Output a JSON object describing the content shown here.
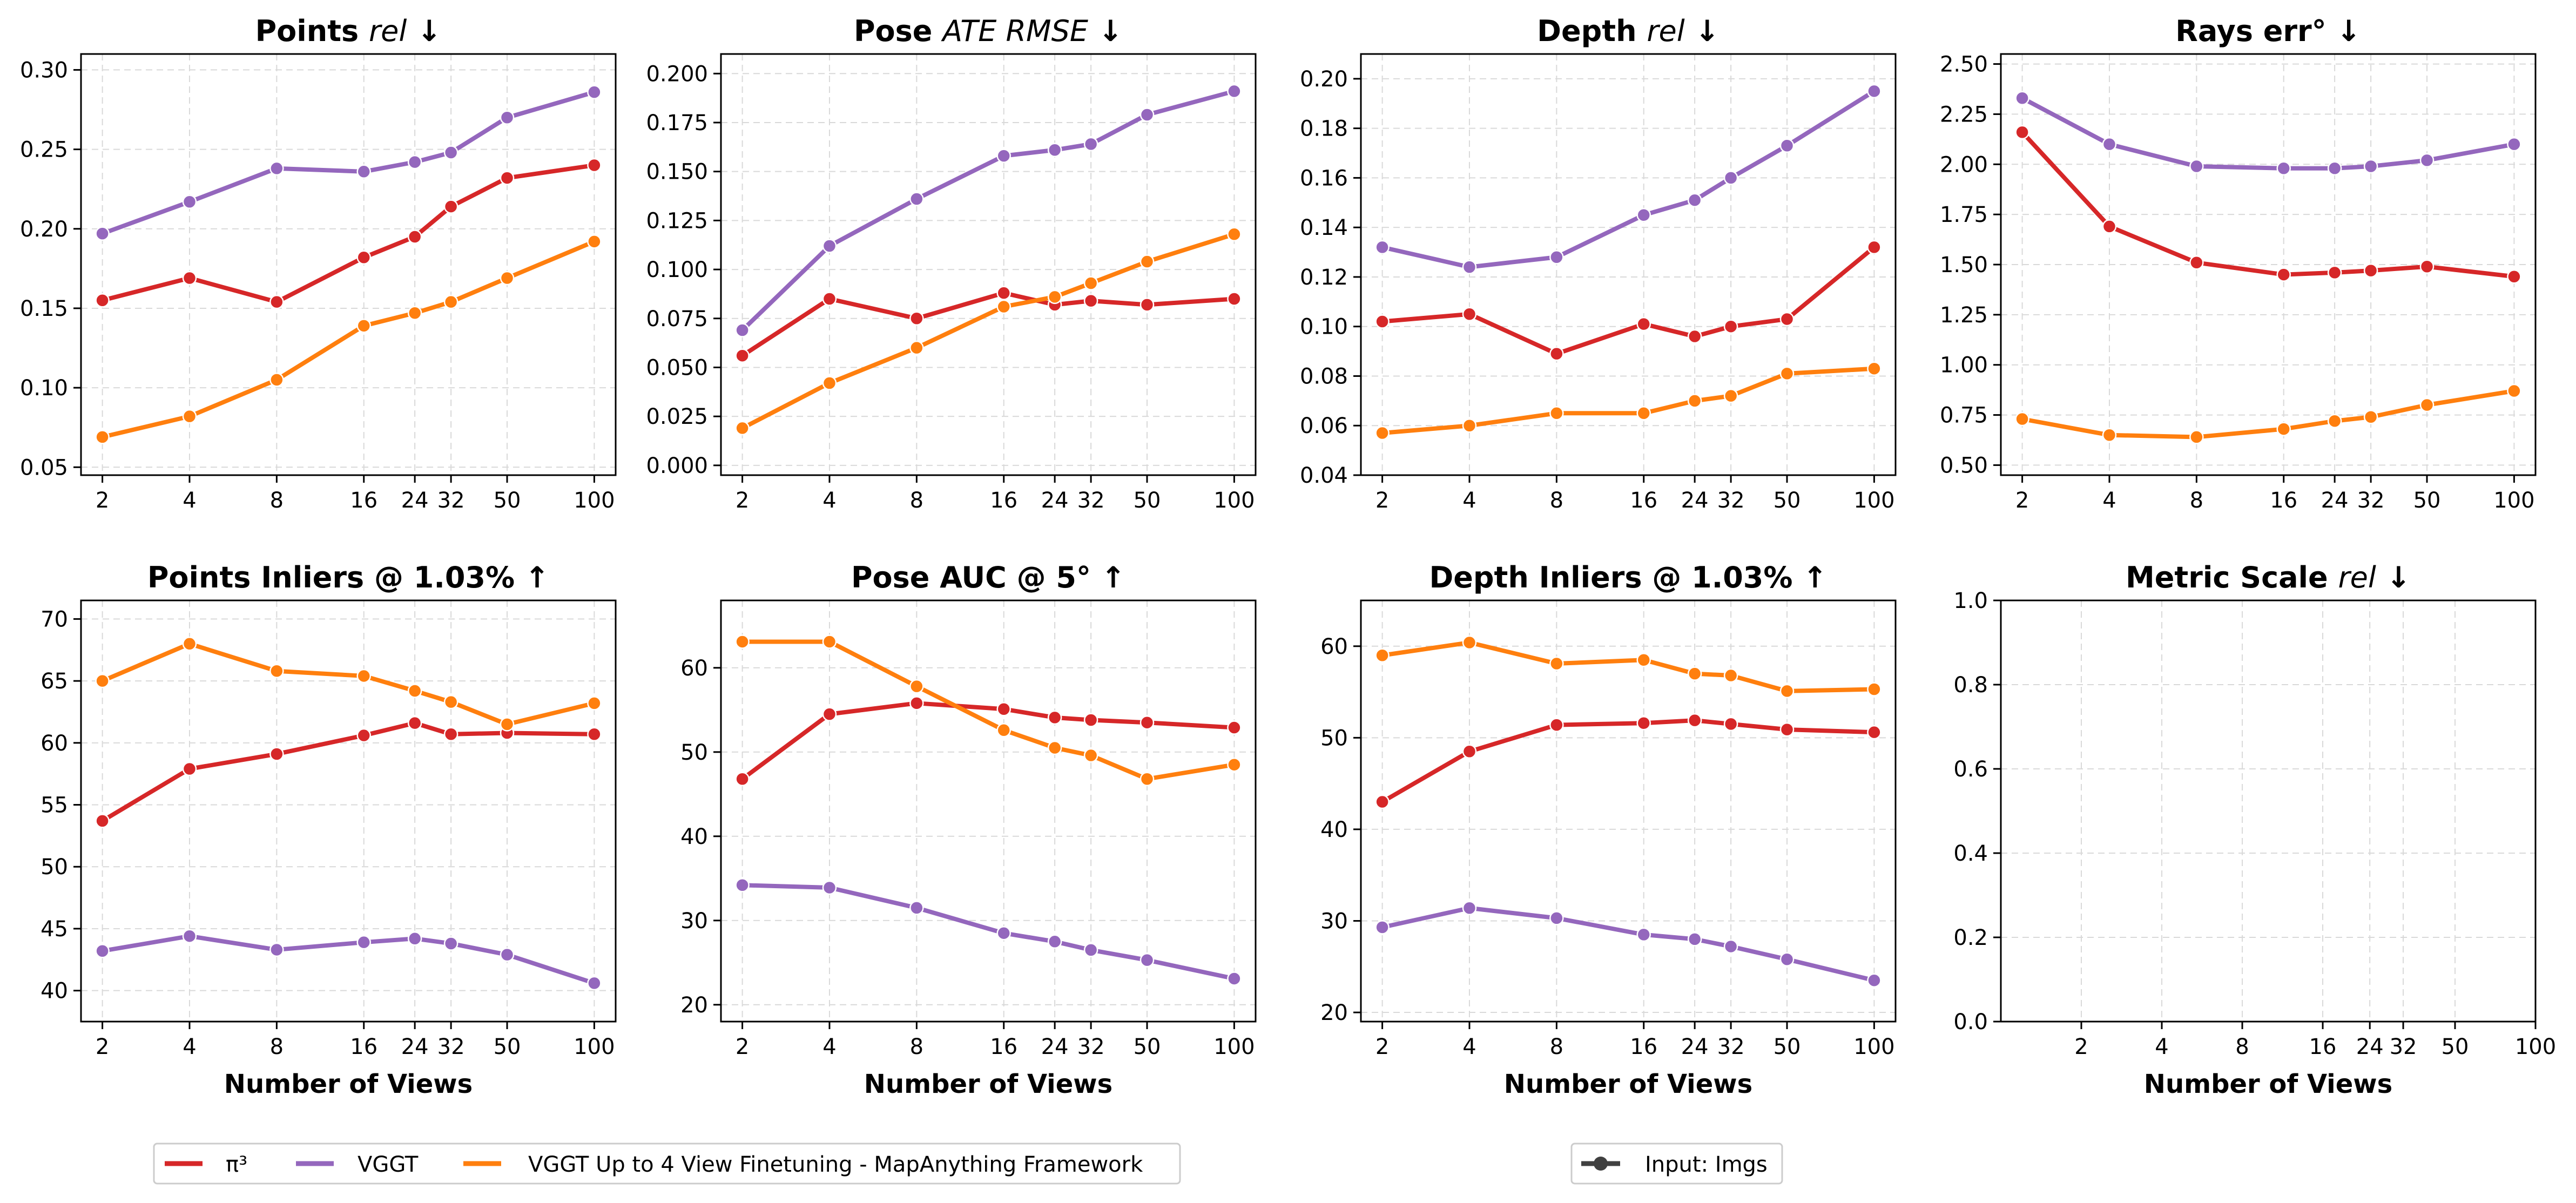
{
  "colors": {
    "pi3": "#d62728",
    "vggt": "#9467bd",
    "vggt_ft": "#ff7f0e",
    "input": "#404040",
    "grid": "#d9d9d9"
  },
  "legend": {
    "series": [
      {
        "name": "π³",
        "color": "#d62728"
      },
      {
        "name": "VGGT",
        "color": "#9467bd"
      },
      {
        "name": "VGGT Up to 4 View Finetuning - MapAnything Framework",
        "color": "#ff7f0e"
      }
    ],
    "input": {
      "name": "Input: Imgs",
      "color": "#404040"
    }
  },
  "chart_data": [
    {
      "type": "line",
      "title": "Points",
      "title_italic": "rel",
      "title_suffix": " ↓",
      "xlabel": "",
      "x_scale": "log",
      "x": [
        2,
        4,
        8,
        16,
        24,
        32,
        50,
        100
      ],
      "xticks": [
        "2",
        "4",
        "8",
        "16",
        "24",
        "32",
        "50",
        "100"
      ],
      "ylim": [
        0.045,
        0.31
      ],
      "yticks": [
        0.05,
        0.1,
        0.15,
        0.2,
        0.25,
        0.3
      ],
      "ytick_labels": [
        "0.05",
        "0.10",
        "0.15",
        "0.20",
        "0.25",
        "0.30"
      ],
      "series": [
        {
          "name": "π³",
          "values": [
            0.155,
            0.169,
            0.154,
            0.182,
            0.195,
            0.214,
            0.232,
            0.24
          ]
        },
        {
          "name": "VGGT",
          "values": [
            0.197,
            0.217,
            0.238,
            0.236,
            0.242,
            0.248,
            0.27,
            0.286
          ]
        },
        {
          "name": "VGGT Up to 4 View Finetuning - MapAnything Framework",
          "values": [
            0.069,
            0.082,
            0.105,
            0.139,
            0.147,
            0.154,
            0.169,
            0.192
          ]
        }
      ]
    },
    {
      "type": "line",
      "title": "Pose",
      "title_italic": "ATE RMSE",
      "title_suffix": " ↓",
      "xlabel": "",
      "x_scale": "log",
      "x": [
        2,
        4,
        8,
        16,
        24,
        32,
        50,
        100
      ],
      "xticks": [
        "2",
        "4",
        "8",
        "16",
        "24",
        "32",
        "50",
        "100"
      ],
      "ylim": [
        -0.005,
        0.21
      ],
      "yticks": [
        0,
        0.025,
        0.05,
        0.075,
        0.1,
        0.125,
        0.15,
        0.175,
        0.2
      ],
      "ytick_labels": [
        "0.000",
        "0.025",
        "0.050",
        "0.075",
        "0.100",
        "0.125",
        "0.150",
        "0.175",
        "0.200"
      ],
      "series": [
        {
          "name": "π³",
          "values": [
            0.056,
            0.085,
            0.075,
            0.088,
            0.082,
            0.084,
            0.082,
            0.085
          ]
        },
        {
          "name": "VGGT",
          "values": [
            0.069,
            0.112,
            0.136,
            0.158,
            0.161,
            0.164,
            0.179,
            0.191
          ]
        },
        {
          "name": "VGGT Up to 4 View Finetuning - MapAnything Framework",
          "values": [
            0.019,
            0.042,
            0.06,
            0.081,
            0.086,
            0.093,
            0.104,
            0.118
          ]
        }
      ]
    },
    {
      "type": "line",
      "title": "Depth",
      "title_italic": "rel",
      "title_suffix": " ↓",
      "xlabel": "",
      "x_scale": "log",
      "x": [
        2,
        4,
        8,
        16,
        24,
        32,
        50,
        100
      ],
      "xticks": [
        "2",
        "4",
        "8",
        "16",
        "24",
        "32",
        "50",
        "100"
      ],
      "ylim": [
        0.04,
        0.21
      ],
      "yticks": [
        0.04,
        0.06,
        0.08,
        0.1,
        0.12,
        0.14,
        0.16,
        0.18,
        0.2
      ],
      "ytick_labels": [
        "0.04",
        "0.06",
        "0.08",
        "0.10",
        "0.12",
        "0.14",
        "0.16",
        "0.18",
        "0.20"
      ],
      "series": [
        {
          "name": "π³",
          "values": [
            0.102,
            0.105,
            0.089,
            0.101,
            0.096,
            0.1,
            0.103,
            0.132
          ]
        },
        {
          "name": "VGGT",
          "values": [
            0.132,
            0.124,
            0.128,
            0.145,
            0.151,
            0.16,
            0.173,
            0.195
          ]
        },
        {
          "name": "VGGT Up to 4 View Finetuning - MapAnything Framework",
          "values": [
            0.057,
            0.06,
            0.065,
            0.065,
            0.07,
            0.072,
            0.081,
            0.083
          ]
        }
      ]
    },
    {
      "type": "line",
      "title": "Rays err°",
      "title_italic": "",
      "title_suffix": "  ↓",
      "xlabel": "",
      "x_scale": "log",
      "x": [
        2,
        4,
        8,
        16,
        24,
        32,
        50,
        100
      ],
      "xticks": [
        "2",
        "4",
        "8",
        "16",
        "24",
        "32",
        "50",
        "100"
      ],
      "ylim": [
        0.45,
        2.55
      ],
      "yticks": [
        0.5,
        0.75,
        1.0,
        1.25,
        1.5,
        1.75,
        2.0,
        2.25,
        2.5
      ],
      "ytick_labels": [
        "0.50",
        "0.75",
        "1.00",
        "1.25",
        "1.50",
        "1.75",
        "2.00",
        "2.25",
        "2.50"
      ],
      "series": [
        {
          "name": "π³",
          "values": [
            2.16,
            1.69,
            1.51,
            1.45,
            1.46,
            1.47,
            1.49,
            1.44
          ]
        },
        {
          "name": "VGGT",
          "values": [
            2.33,
            2.1,
            1.99,
            1.98,
            1.98,
            1.99,
            2.02,
            2.1
          ]
        },
        {
          "name": "VGGT Up to 4 View Finetuning - MapAnything Framework",
          "values": [
            0.73,
            0.65,
            0.64,
            0.68,
            0.72,
            0.74,
            0.8,
            0.87
          ]
        }
      ]
    },
    {
      "type": "line",
      "title": "Points Inliers @ 1.03%",
      "title_italic": "",
      "title_suffix": "  ↑",
      "xlabel": "Number of Views",
      "x_scale": "log",
      "x": [
        2,
        4,
        8,
        16,
        24,
        32,
        50,
        100
      ],
      "xticks": [
        "2",
        "4",
        "8",
        "16",
        "24",
        "32",
        "50",
        "100"
      ],
      "ylim": [
        37.5,
        71.5
      ],
      "yticks": [
        40,
        45,
        50,
        55,
        60,
        65,
        70
      ],
      "ytick_labels": [
        "40",
        "45",
        "50",
        "55",
        "60",
        "65",
        "70"
      ],
      "series": [
        {
          "name": "π³",
          "values": [
            53.7,
            57.9,
            59.1,
            60.6,
            61.6,
            60.7,
            60.8,
            60.7
          ]
        },
        {
          "name": "VGGT",
          "values": [
            43.2,
            44.4,
            43.3,
            43.9,
            44.2,
            43.8,
            42.9,
            40.6
          ]
        },
        {
          "name": "VGGT Up to 4 View Finetuning - MapAnything Framework",
          "values": [
            65.0,
            68.0,
            65.8,
            65.4,
            64.2,
            63.3,
            61.5,
            63.2
          ]
        }
      ]
    },
    {
      "type": "line",
      "title": "Pose AUC @ 5°",
      "title_italic": "",
      "title_suffix": "  ↑",
      "xlabel": "Number of Views",
      "x_scale": "log",
      "x": [
        2,
        4,
        8,
        16,
        24,
        32,
        50,
        100
      ],
      "xticks": [
        "2",
        "4",
        "8",
        "16",
        "24",
        "32",
        "50",
        "100"
      ],
      "ylim": [
        18,
        68
      ],
      "yticks": [
        20,
        30,
        40,
        50,
        60
      ],
      "ytick_labels": [
        "20",
        "30",
        "40",
        "50",
        "60"
      ],
      "series": [
        {
          "name": "π³",
          "values": [
            46.8,
            54.5,
            55.8,
            55.1,
            54.1,
            53.8,
            53.5,
            52.9
          ]
        },
        {
          "name": "VGGT",
          "values": [
            34.2,
            33.9,
            31.5,
            28.5,
            27.5,
            26.5,
            25.3,
            23.1
          ]
        },
        {
          "name": "VGGT Up to 4 View Finetuning - MapAnything Framework",
          "values": [
            63.1,
            63.1,
            57.8,
            52.6,
            50.5,
            49.6,
            46.8,
            48.5
          ]
        }
      ]
    },
    {
      "type": "line",
      "title": "Depth Inliers @ 1.03%",
      "title_italic": "",
      "title_suffix": "  ↑",
      "xlabel": "Number of Views",
      "x_scale": "log",
      "x": [
        2,
        4,
        8,
        16,
        24,
        32,
        50,
        100
      ],
      "xticks": [
        "2",
        "4",
        "8",
        "16",
        "24",
        "32",
        "50",
        "100"
      ],
      "ylim": [
        19,
        65
      ],
      "yticks": [
        20,
        30,
        40,
        50,
        60
      ],
      "ytick_labels": [
        "20",
        "30",
        "40",
        "50",
        "60"
      ],
      "series": [
        {
          "name": "π³",
          "values": [
            43.0,
            48.5,
            51.4,
            51.6,
            51.9,
            51.5,
            50.9,
            50.6
          ]
        },
        {
          "name": "VGGT",
          "values": [
            29.3,
            31.4,
            30.3,
            28.5,
            28.0,
            27.2,
            25.8,
            23.5
          ]
        },
        {
          "name": "VGGT Up to 4 View Finetuning - MapAnything Framework",
          "values": [
            59.0,
            60.4,
            58.1,
            58.5,
            57.0,
            56.8,
            55.1,
            55.3
          ]
        }
      ]
    },
    {
      "type": "line",
      "title": "Metric Scale",
      "title_italic": "rel",
      "title_suffix": " ↓",
      "xlabel": "Number of Views",
      "x_scale": "log",
      "x": [
        2,
        4,
        8,
        16,
        24,
        32,
        50,
        100
      ],
      "x_range": [
        1,
        100
      ],
      "xticks": [
        "2",
        "4",
        "8",
        "16",
        "24",
        "32",
        "50",
        "100"
      ],
      "ylim": [
        0,
        1
      ],
      "yticks": [
        0,
        0.2,
        0.4,
        0.6,
        0.8,
        1.0
      ],
      "ytick_labels": [
        "0.0",
        "0.2",
        "0.4",
        "0.6",
        "0.8",
        "1.0"
      ],
      "series": []
    }
  ]
}
